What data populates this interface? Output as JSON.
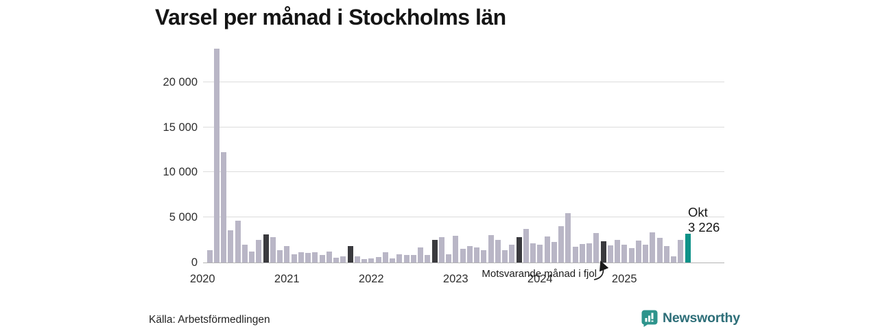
{
  "title": "Varsel per månad i Stockholms län",
  "source": "Källa: Arbetsförmedlingen",
  "annotation": {
    "text": "Motsvarande månad i fjol",
    "points_to": "okt 2024"
  },
  "highlight_label": {
    "line1": "Okt",
    "line2": "3 226"
  },
  "branding": {
    "logo_text": "Newsworthy",
    "badge_icon": "bar-chart-exclamation-badge",
    "badge_color": "#2e948c",
    "text_color": "#2d6e78"
  },
  "colors": {
    "bar_normal": "#b9b6c6",
    "bar_same_month_prev_year": "#3a3a3e",
    "bar_current": "#0e9288",
    "gridline": "#dcdcdc",
    "axis_line": "#b3b3b3"
  },
  "chart_data": {
    "type": "bar",
    "title": "Varsel per månad i Stockholms län",
    "xlabel": "",
    "ylabel": "",
    "ylim": [
      0,
      24200
    ],
    "grid": "horizontal",
    "legend_position": "none",
    "y_ticks": [
      {
        "value": 0,
        "label": "0"
      },
      {
        "value": 5000,
        "label": "5 000"
      },
      {
        "value": 10000,
        "label": "10 000"
      },
      {
        "value": 15000,
        "label": "15 000"
      },
      {
        "value": 20000,
        "label": "20 000"
      }
    ],
    "x_year_labels": [
      "2020",
      "2021",
      "2022",
      "2023",
      "2024",
      "2025"
    ],
    "series": [
      {
        "month": "feb 2020",
        "value": 1400
      },
      {
        "month": "mar 2020",
        "value": 23700
      },
      {
        "month": "apr 2020",
        "value": 12200
      },
      {
        "month": "maj 2020",
        "value": 3550
      },
      {
        "month": "jun 2020",
        "value": 4600
      },
      {
        "month": "jul 2020",
        "value": 2000
      },
      {
        "month": "aug 2020",
        "value": 1200
      },
      {
        "month": "sep 2020",
        "value": 2500
      },
      {
        "month": "okt 2020",
        "value": 3100,
        "kind": "same_month_prev_year"
      },
      {
        "month": "nov 2020",
        "value": 2800
      },
      {
        "month": "dec 2020",
        "value": 1400
      },
      {
        "month": "jan 2021",
        "value": 1800
      },
      {
        "month": "feb 2021",
        "value": 950
      },
      {
        "month": "mar 2021",
        "value": 1150
      },
      {
        "month": "apr 2021",
        "value": 1100
      },
      {
        "month": "maj 2021",
        "value": 1150
      },
      {
        "month": "jun 2021",
        "value": 850
      },
      {
        "month": "jul 2021",
        "value": 1250
      },
      {
        "month": "aug 2021",
        "value": 500
      },
      {
        "month": "sep 2021",
        "value": 650
      },
      {
        "month": "okt 2021",
        "value": 1800,
        "kind": "same_month_prev_year"
      },
      {
        "month": "nov 2021",
        "value": 650
      },
      {
        "month": "dec 2021",
        "value": 350
      },
      {
        "month": "jan 2022",
        "value": 450
      },
      {
        "month": "feb 2022",
        "value": 600
      },
      {
        "month": "mar 2022",
        "value": 1150
      },
      {
        "month": "apr 2022",
        "value": 450
      },
      {
        "month": "maj 2022",
        "value": 900
      },
      {
        "month": "jun 2022",
        "value": 800
      },
      {
        "month": "jul 2022",
        "value": 800
      },
      {
        "month": "aug 2022",
        "value": 1700
      },
      {
        "month": "sep 2022",
        "value": 800
      },
      {
        "month": "okt 2022",
        "value": 2500,
        "kind": "same_month_prev_year"
      },
      {
        "month": "nov 2022",
        "value": 2800
      },
      {
        "month": "dec 2022",
        "value": 950
      },
      {
        "month": "jan 2023",
        "value": 3000
      },
      {
        "month": "feb 2023",
        "value": 1500
      },
      {
        "month": "mar 2023",
        "value": 1800
      },
      {
        "month": "apr 2023",
        "value": 1650
      },
      {
        "month": "maj 2023",
        "value": 1400
      },
      {
        "month": "jun 2023",
        "value": 3050
      },
      {
        "month": "jul 2023",
        "value": 2500
      },
      {
        "month": "aug 2023",
        "value": 1350
      },
      {
        "month": "sep 2023",
        "value": 1950
      },
      {
        "month": "okt 2023",
        "value": 2800,
        "kind": "same_month_prev_year"
      },
      {
        "month": "nov 2023",
        "value": 3700
      },
      {
        "month": "dec 2023",
        "value": 2150
      },
      {
        "month": "jan 2024",
        "value": 2000
      },
      {
        "month": "feb 2024",
        "value": 2900
      },
      {
        "month": "mar 2024",
        "value": 2250
      },
      {
        "month": "apr 2024",
        "value": 4050
      },
      {
        "month": "maj 2024",
        "value": 5450
      },
      {
        "month": "jun 2024",
        "value": 1750
      },
      {
        "month": "jul 2024",
        "value": 2050
      },
      {
        "month": "aug 2024",
        "value": 2100
      },
      {
        "month": "sep 2024",
        "value": 3300
      },
      {
        "month": "okt 2024",
        "value": 2350,
        "kind": "same_month_prev_year"
      },
      {
        "month": "nov 2024",
        "value": 1900
      },
      {
        "month": "dec 2024",
        "value": 2500
      },
      {
        "month": "jan 2025",
        "value": 1950
      },
      {
        "month": "feb 2025",
        "value": 1600
      },
      {
        "month": "mar 2025",
        "value": 2400
      },
      {
        "month": "apr 2025",
        "value": 1950
      },
      {
        "month": "maj 2025",
        "value": 3350
      },
      {
        "month": "jun 2025",
        "value": 2700
      },
      {
        "month": "jul 2025",
        "value": 1850
      },
      {
        "month": "aug 2025",
        "value": 650
      },
      {
        "month": "sep 2025",
        "value": 2500
      },
      {
        "month": "okt 2025",
        "value": 3226,
        "kind": "current"
      }
    ]
  }
}
